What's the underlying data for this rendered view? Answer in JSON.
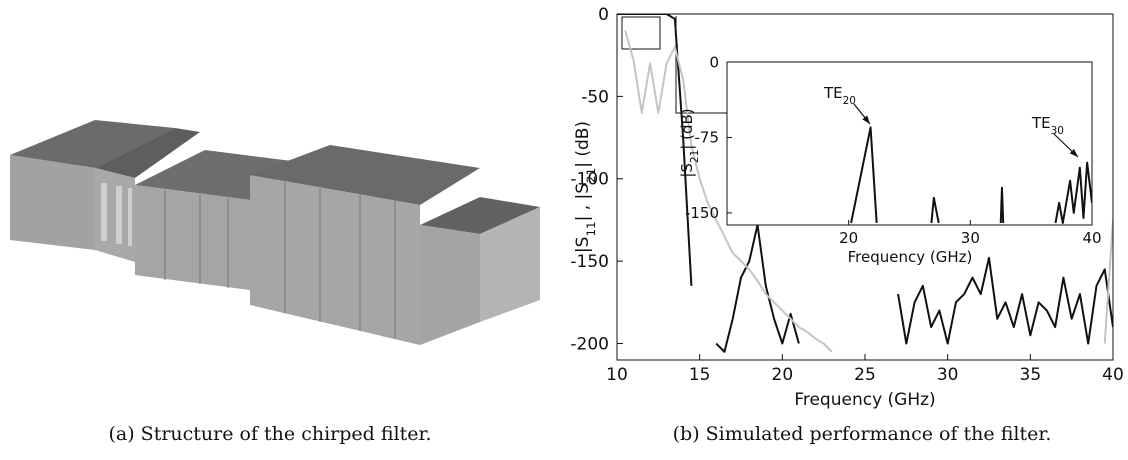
{
  "figure_a": {
    "caption": "(a) Structure of the chirped filter."
  },
  "chart_data": [
    {
      "type": "line",
      "caption": "(b) Simulated performance of the filter.",
      "xlabel": "Frequency (GHz)",
      "ylabel": [
        "|S",
        "11",
        "| , |S",
        "21",
        "| (dB)"
      ],
      "xlim": [
        10,
        40
      ],
      "ylim": [
        -210,
        0
      ],
      "xticks": [
        10,
        15,
        20,
        25,
        30,
        35,
        40
      ],
      "yticks": [
        0,
        -50,
        -100,
        -150,
        -200
      ],
      "x": [
        10,
        10.5,
        11,
        11.5,
        12,
        12.5,
        13,
        13.5,
        14,
        14.5,
        15,
        15.5,
        16,
        16.5,
        17,
        17.5,
        18,
        18.5,
        19,
        19.5,
        20,
        20.5,
        21,
        21.5,
        22,
        22.5,
        23,
        23.5,
        24,
        24.5,
        25,
        25.5,
        26,
        26.5,
        27,
        27.5,
        28,
        28.5,
        29,
        29.5,
        30,
        30.5,
        31,
        31.5,
        32,
        32.5,
        33,
        33.5,
        34,
        34.5,
        35,
        35.5,
        36,
        36.5,
        37,
        37.5,
        38,
        38.5,
        39,
        39.5,
        40
      ],
      "series": [
        {
          "color": "#111111",
          "values": [
            0,
            0,
            0,
            0,
            0,
            0,
            0,
            -3,
            -75,
            -165,
            null,
            null,
            -200,
            -205,
            -185,
            -160,
            -150,
            -128,
            -165,
            -185,
            -200,
            -182,
            -200,
            null,
            null,
            null,
            null,
            null,
            null,
            null,
            null,
            null,
            null,
            null,
            -170,
            -200,
            -175,
            -165,
            -190,
            -180,
            -200,
            -175,
            -170,
            -160,
            -170,
            -148,
            -185,
            -175,
            -190,
            -170,
            -195,
            -175,
            -180,
            -190,
            -160,
            -185,
            -170,
            -200,
            -165,
            -155,
            -190
          ]
        },
        {
          "color": "#c4c4c4",
          "values": [
            null,
            -10,
            -28,
            -60,
            -30,
            -60,
            -30,
            -20,
            -40,
            -80,
            -100,
            -115,
            -125,
            -135,
            -145,
            -150,
            -155,
            -162,
            -170,
            -175,
            -180,
            -185,
            -190,
            -193,
            -197,
            -200,
            -205,
            null,
            null,
            null,
            null,
            null,
            null,
            null,
            null,
            null,
            null,
            null,
            null,
            null,
            null,
            null,
            null,
            null,
            null,
            null,
            null,
            null,
            null,
            null,
            null,
            null,
            null,
            null,
            null,
            null,
            null,
            null,
            null,
            -200,
            -125
          ]
        }
      ]
    },
    {
      "type": "line",
      "xlabel": "Frequency (GHz)",
      "ylabel": [
        "|S",
        "21",
        "| (dB)"
      ],
      "xlim": [
        10,
        40
      ],
      "ylim": [
        -162,
        0
      ],
      "xticks": [
        20,
        30,
        40
      ],
      "yticks": [
        0,
        -75,
        -150
      ],
      "x": [
        20.2,
        21.8,
        22.3,
        24,
        26.8,
        27,
        27.4,
        30,
        32.5,
        32.6,
        32.7,
        35,
        37,
        37.3,
        37.6,
        38.2,
        38.5,
        39,
        39.3,
        39.6,
        40
      ],
      "series": [
        {
          "color": "#111111",
          "values": [
            -160,
            -65,
            -160,
            null,
            -160,
            -135,
            -160,
            null,
            -160,
            -125,
            -160,
            null,
            -160,
            -140,
            -160,
            -118,
            -150,
            -105,
            -155,
            -100,
            -140
          ]
        }
      ],
      "annotations": [
        {
          "text": "TE",
          "sub": "20"
        },
        {
          "text": "TE",
          "sub": "30"
        }
      ]
    }
  ]
}
